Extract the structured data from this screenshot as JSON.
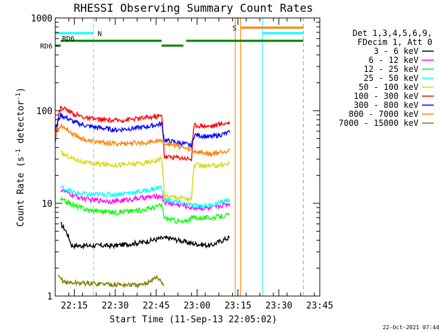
{
  "chart_data": {
    "type": "line",
    "title": "RHESSI Observing Summary Count Rates",
    "xlabel": "Start Time (11-Sep-13 22:05:02)",
    "ylabel": "Count Rate (s",
    "ylabel_sup": "-1",
    "ylabel_tail": " detector",
    "ylabel_close": ")",
    "y_scale": "log",
    "ylim": [
      1,
      1000
    ],
    "xlim": [
      "22:08",
      "23:45"
    ],
    "y_ticks": [
      "1",
      "10",
      "100",
      "1000"
    ],
    "x_ticks": [
      "22:15",
      "22:30",
      "22:45",
      "23:00",
      "23:15",
      "23:30",
      "23:45"
    ],
    "legend_position": "right",
    "legend_header": [
      "Det 1,3,4,5,6,9,",
      "FDecim 1, Att 0"
    ],
    "series": [
      {
        "name": "3 - 6 keV",
        "color": "#000000",
        "points": [
          [
            "22:10",
            6
          ],
          [
            "22:12",
            5
          ],
          [
            "22:14",
            3.5
          ],
          [
            "22:20",
            3.5
          ],
          [
            "22:30",
            3.5
          ],
          [
            "22:40",
            3.8
          ],
          [
            "22:47",
            4.2
          ],
          [
            "22:50",
            4.2
          ],
          [
            "22:58",
            3.7
          ],
          [
            "23:05",
            3.5
          ],
          [
            "23:12",
            4.3
          ]
        ]
      },
      {
        "name": "6 - 12 keV",
        "color": "#ff00ff",
        "points": [
          [
            "22:10",
            14
          ],
          [
            "22:15",
            12
          ],
          [
            "22:20",
            11
          ],
          [
            "22:30",
            10.5
          ],
          [
            "22:40",
            11.5
          ],
          [
            "22:47",
            12
          ],
          [
            "22:48",
            10.2
          ],
          [
            "22:55",
            9.5
          ],
          [
            "22:58",
            9
          ],
          [
            "23:05",
            8.8
          ],
          [
            "23:12",
            10
          ]
        ]
      },
      {
        "name": "12 - 25 keV",
        "color": "#00ff00",
        "points": [
          [
            "22:10",
            11
          ],
          [
            "22:15",
            9.5
          ],
          [
            "22:20",
            8.5
          ],
          [
            "22:30",
            8
          ],
          [
            "22:40",
            8.5
          ],
          [
            "22:47",
            9.5
          ],
          [
            "22:48",
            7
          ],
          [
            "22:55",
            6.2
          ],
          [
            "22:58",
            7
          ],
          [
            "23:05",
            7
          ],
          [
            "23:12",
            7.5
          ]
        ]
      },
      {
        "name": "25 - 50 keV",
        "color": "#00ffff",
        "points": [
          [
            "22:10",
            15
          ],
          [
            "22:15",
            13
          ],
          [
            "22:20",
            12.5
          ],
          [
            "22:30",
            12.5
          ],
          [
            "22:40",
            13.5
          ],
          [
            "22:47",
            15
          ],
          [
            "22:48",
            11
          ],
          [
            "22:55",
            10
          ],
          [
            "22:58",
            9.5
          ],
          [
            "23:05",
            9.5
          ],
          [
            "23:12",
            11
          ]
        ]
      },
      {
        "name": "50 - 100 keV",
        "color": "#d8d800",
        "points": [
          [
            "22:10",
            35
          ],
          [
            "22:15",
            30
          ],
          [
            "22:20",
            27
          ],
          [
            "22:30",
            26
          ],
          [
            "22:40",
            27
          ],
          [
            "22:47",
            30
          ],
          [
            "22:48",
            12
          ],
          [
            "22:55",
            11.5
          ],
          [
            "22:58",
            11
          ],
          [
            "22:59",
            26
          ],
          [
            "23:05",
            25
          ],
          [
            "23:12",
            27
          ]
        ]
      },
      {
        "name": "100 - 300 keV",
        "color": "#ff0000",
        "points": [
          [
            "22:08",
            48
          ],
          [
            "22:10",
            110
          ],
          [
            "22:15",
            92
          ],
          [
            "22:20",
            82
          ],
          [
            "22:30",
            78
          ],
          [
            "22:40",
            83
          ],
          [
            "22:47",
            88
          ],
          [
            "22:48",
            32
          ],
          [
            "22:55",
            31
          ],
          [
            "22:58",
            30
          ],
          [
            "22:59",
            70
          ],
          [
            "23:05",
            68
          ],
          [
            "23:12",
            75
          ]
        ]
      },
      {
        "name": "300 - 800 keV",
        "color": "#0000ff",
        "points": [
          [
            "22:08",
            62
          ],
          [
            "22:10",
            90
          ],
          [
            "22:15",
            75
          ],
          [
            "22:20",
            68
          ],
          [
            "22:30",
            62
          ],
          [
            "22:40",
            66
          ],
          [
            "22:47",
            72
          ],
          [
            "22:48",
            48
          ],
          [
            "22:55",
            44
          ],
          [
            "22:58",
            42
          ],
          [
            "22:59",
            55
          ],
          [
            "23:05",
            52
          ],
          [
            "23:12",
            58
          ]
        ]
      },
      {
        "name": "800 - 7000 keV",
        "color": "#ff8000",
        "points": [
          [
            "22:08",
            55
          ],
          [
            "22:10",
            70
          ],
          [
            "22:15",
            55
          ],
          [
            "22:20",
            47
          ],
          [
            "22:30",
            44
          ],
          [
            "22:40",
            45
          ],
          [
            "22:47",
            48
          ],
          [
            "22:48",
            45
          ],
          [
            "22:55",
            40
          ],
          [
            "22:58",
            37
          ],
          [
            "23:05",
            34
          ],
          [
            "23:12",
            38
          ]
        ]
      },
      {
        "name": "7000 - 15000 keV",
        "color": "#808000",
        "points": [
          [
            "22:09",
            1.6
          ],
          [
            "22:12",
            1.4
          ],
          [
            "22:40",
            1.3
          ],
          [
            "22:45",
            1.6
          ],
          [
            "22:48",
            1.3
          ]
        ]
      }
    ],
    "flags": [
      {
        "label": "N",
        "color": "#00ffff",
        "start": "22:08",
        "end": "22:22"
      },
      {
        "label": "",
        "color": "#00ffff",
        "start": "23:24",
        "end": "23:39"
      },
      {
        "label": "S",
        "color": "#ff8000",
        "start": "23:16",
        "end": "23:39"
      },
      {
        "label": "RD6",
        "color": "#008000",
        "start": "22:08",
        "end": "22:10"
      },
      {
        "label": "RD6",
        "color": "#008000",
        "start": "22:10",
        "end": "22:47"
      },
      {
        "label": "",
        "color": "#008000",
        "start": "22:47",
        "end": "22:55"
      },
      {
        "label": "",
        "color": "#008000",
        "start": "22:56",
        "end": "23:39"
      }
    ],
    "vlines": [
      {
        "time": "22:08",
        "color": "#00ffff",
        "dashed": false
      },
      {
        "time": "22:22",
        "color": "#00ffff",
        "dashed": true
      },
      {
        "time": "23:14",
        "color": "#ff8000",
        "dashed": false
      },
      {
        "time": "23:16",
        "color": "#ff8000",
        "dashed": false
      },
      {
        "time": "23:24",
        "color": "#00ffff",
        "dashed": false
      },
      {
        "time": "23:39",
        "color": "#ff8000",
        "dashed": true
      },
      {
        "time": "23:39",
        "color": "#00ffff",
        "dashed": true
      }
    ],
    "footer_date": "22-Oct-2021 07:44"
  }
}
